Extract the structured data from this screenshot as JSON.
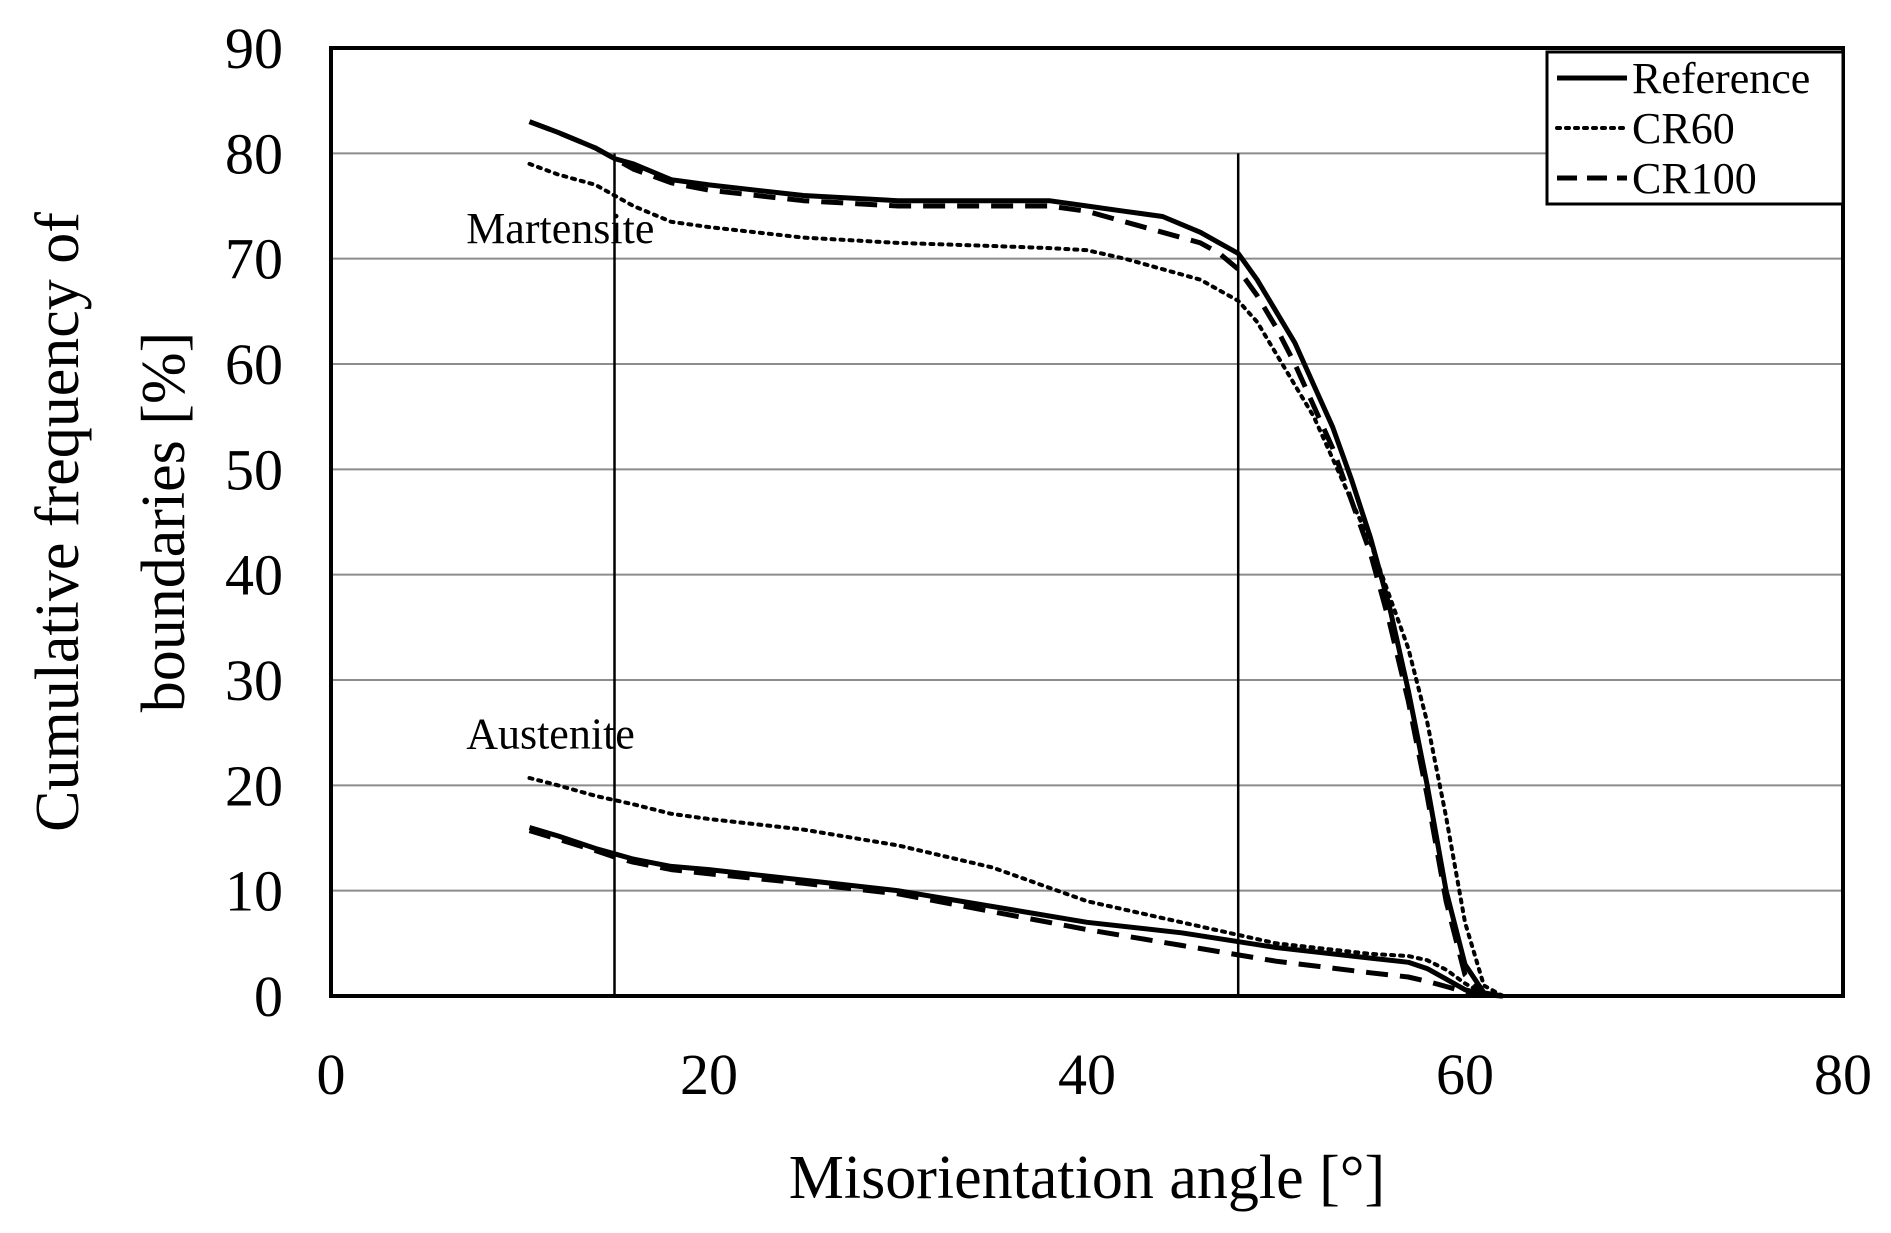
{
  "chart_data": {
    "type": "line",
    "title": "",
    "xlabel": "Misorientation angle [°]",
    "ylabel_line1": "Cumulative frequency of",
    "ylabel_line2": "boundaries [%]",
    "xlim": [
      0,
      80
    ],
    "ylim": [
      0,
      90
    ],
    "xticks": [
      0,
      20,
      40,
      60,
      80
    ],
    "yticks": [
      0,
      10,
      20,
      30,
      40,
      50,
      60,
      70,
      80,
      90
    ],
    "grid": "horizontal",
    "legend_position": "top-right",
    "reference_lines_x": [
      15,
      48
    ],
    "annotations": [
      {
        "text": "Martensite",
        "x": 8,
        "y": 73
      },
      {
        "text": "Austenite",
        "x": 8,
        "y": 25
      }
    ],
    "series": [
      {
        "name": "Reference",
        "style": "solid",
        "group": "Martensite",
        "x": [
          10.5,
          12,
          14,
          15,
          16,
          18,
          20,
          25,
          30,
          35,
          38,
          40,
          42,
          44,
          46,
          47,
          48,
          49,
          50,
          51,
          52,
          53,
          54,
          55,
          56,
          57,
          58,
          59,
          60,
          61,
          62
        ],
        "y": [
          83,
          82,
          80.5,
          79.5,
          79,
          77.5,
          77,
          76,
          75.5,
          75.5,
          75.5,
          75,
          74.5,
          74,
          72.5,
          71.5,
          70.5,
          68,
          65,
          62,
          58,
          54,
          49,
          43.5,
          37,
          29,
          20,
          10,
          3,
          0.3,
          0
        ]
      },
      {
        "name": "CR60",
        "style": "dotted",
        "group": "Martensite",
        "x": [
          10.5,
          12,
          14,
          15,
          16,
          18,
          20,
          25,
          30,
          35,
          38,
          40,
          42,
          44,
          46,
          47,
          48,
          49,
          50,
          51,
          52,
          53,
          54,
          55,
          56,
          57,
          58,
          59,
          60,
          61,
          62
        ],
        "y": [
          79,
          78,
          77,
          76,
          75,
          73.5,
          73,
          72,
          71.5,
          71.2,
          71,
          70.8,
          70,
          69,
          68,
          67,
          66,
          64,
          61,
          58,
          55,
          51,
          47,
          43,
          38,
          33,
          26,
          17,
          7,
          1,
          0
        ]
      },
      {
        "name": "CR100",
        "style": "dashed",
        "group": "Martensite",
        "x": [
          10.5,
          12,
          14,
          15,
          16,
          18,
          20,
          25,
          30,
          35,
          38,
          40,
          42,
          44,
          46,
          47,
          48,
          49,
          50,
          51,
          52,
          53,
          54,
          55,
          56,
          57,
          58,
          59,
          60,
          61,
          62
        ],
        "y": [
          83,
          82,
          80.5,
          79.5,
          78.5,
          77.2,
          76.5,
          75.5,
          75,
          75,
          75,
          74.5,
          73.5,
          72.5,
          71.5,
          70.5,
          69,
          66.5,
          63.5,
          60,
          56,
          52,
          47,
          42,
          35.5,
          28,
          19,
          9,
          2,
          0.2,
          0
        ]
      },
      {
        "name": "Reference",
        "style": "solid",
        "group": "Austenite",
        "x": [
          10.5,
          12,
          14,
          15,
          16,
          18,
          20,
          25,
          30,
          35,
          40,
          45,
          50,
          55,
          57,
          58,
          59,
          60,
          61,
          62
        ],
        "y": [
          16,
          15.2,
          14,
          13.5,
          13,
          12.3,
          12,
          11,
          10,
          8.5,
          7,
          6,
          4.6,
          3.6,
          3.2,
          2.6,
          1.6,
          0.6,
          0.1,
          0
        ]
      },
      {
        "name": "CR60",
        "style": "dotted",
        "group": "Austenite",
        "x": [
          10.5,
          12,
          14,
          15,
          16,
          18,
          20,
          25,
          30,
          35,
          40,
          45,
          50,
          55,
          57,
          58,
          59,
          60,
          61,
          62
        ],
        "y": [
          20.7,
          20,
          19,
          18.6,
          18.2,
          17.3,
          16.8,
          15.8,
          14.3,
          12.2,
          9,
          7,
          5,
          4,
          3.8,
          3.4,
          2.5,
          1.2,
          0.2,
          0
        ]
      },
      {
        "name": "CR100",
        "style": "dashed",
        "group": "Austenite",
        "x": [
          10.5,
          12,
          14,
          15,
          16,
          18,
          20,
          25,
          30,
          35,
          40,
          45,
          50,
          55,
          57,
          58,
          59,
          60,
          61,
          62
        ],
        "y": [
          15.7,
          14.9,
          13.8,
          13.2,
          12.7,
          12,
          11.6,
          10.7,
          9.7,
          8,
          6.3,
          4.8,
          3.3,
          2.2,
          1.8,
          1.4,
          0.9,
          0.4,
          0.1,
          0
        ]
      }
    ],
    "legend": [
      {
        "name": "Reference",
        "style": "solid"
      },
      {
        "name": "CR60",
        "style": "dotted"
      },
      {
        "name": "CR100",
        "style": "dashed"
      }
    ]
  }
}
